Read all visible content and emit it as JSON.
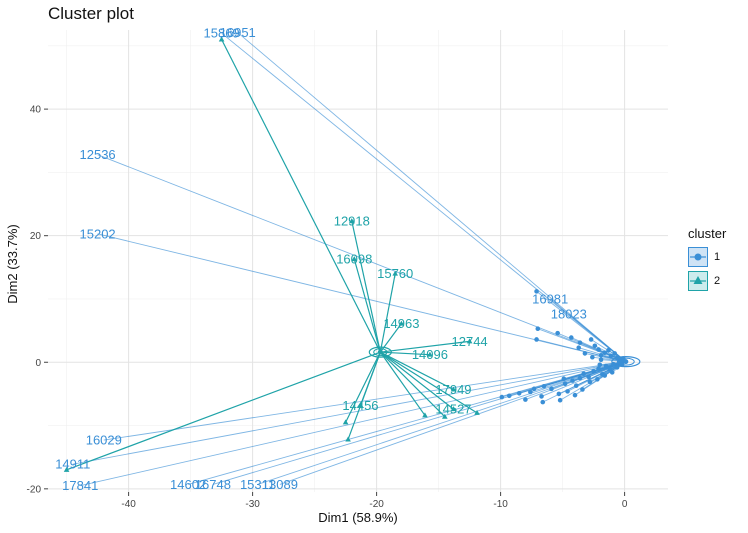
{
  "chart_data": {
    "type": "scatter",
    "title": "Cluster plot",
    "xlabel": "Dim1 (58.9%)",
    "ylabel": "Dim2 (33.7%)",
    "xlim": [
      -46.5,
      3.5
    ],
    "ylim": [
      -20.5,
      52.5
    ],
    "xticks": [
      -40,
      -30,
      -20,
      -10,
      0
    ],
    "yticks": [
      -20,
      0,
      20,
      40
    ],
    "grid": true,
    "legend_title": "cluster",
    "legend_position": "right",
    "colors": {
      "1": "#3a8fd6",
      "2": "#1fa3a8"
    },
    "centroids": {
      "1": {
        "x": 0.1,
        "y": 0.1
      },
      "2": {
        "x": -19.7,
        "y": 1.6
      }
    },
    "series": [
      {
        "name": "1",
        "labeled_points": [
          {
            "label": "15869",
            "x": -32.5,
            "y": 52.0
          },
          {
            "label": "16951",
            "x": -31.2,
            "y": 52.1
          },
          {
            "label": "12536",
            "x": -42.5,
            "y": 32.8
          },
          {
            "label": "15202",
            "x": -42.5,
            "y": 20.3
          },
          {
            "label": "16981",
            "x": -6.0,
            "y": 10.0
          },
          {
            "label": "18023",
            "x": -4.5,
            "y": 7.6
          },
          {
            "label": "16029",
            "x": -42.0,
            "y": -12.3
          },
          {
            "label": "14911",
            "x": -44.5,
            "y": -16.1
          },
          {
            "label": "17841",
            "x": -43.9,
            "y": -19.5
          },
          {
            "label": "14602",
            "x": -35.2,
            "y": -19.3
          },
          {
            "label": "16748",
            "x": -33.2,
            "y": -19.3
          },
          {
            "label": "15311",
            "x": -29.6,
            "y": -19.3
          },
          {
            "label": "13089",
            "x": -27.8,
            "y": -19.3
          }
        ],
        "unlabeled_points": [
          {
            "x": -7.1,
            "y": 11.2
          },
          {
            "x": -7.0,
            "y": 5.3
          },
          {
            "x": -7.1,
            "y": 3.6
          },
          {
            "x": -5.4,
            "y": 4.6
          },
          {
            "x": -4.3,
            "y": 3.9
          },
          {
            "x": -3.6,
            "y": 3.1
          },
          {
            "x": -2.7,
            "y": 3.6
          },
          {
            "x": -2.1,
            "y": 2.0
          },
          {
            "x": -1.6,
            "y": 1.5
          },
          {
            "x": -1.1,
            "y": 1.0
          },
          {
            "x": -0.6,
            "y": 0.7
          },
          {
            "x": -0.3,
            "y": 0.4
          },
          {
            "x": -3.2,
            "y": 1.4
          },
          {
            "x": -2.6,
            "y": 0.8
          },
          {
            "x": -1.9,
            "y": 0.4
          },
          {
            "x": -9.9,
            "y": -5.5
          },
          {
            "x": -9.3,
            "y": -5.3
          },
          {
            "x": -8.5,
            "y": -4.9
          },
          {
            "x": -7.6,
            "y": -4.7
          },
          {
            "x": -8.0,
            "y": -5.9
          },
          {
            "x": -6.7,
            "y": -5.4
          },
          {
            "x": -6.5,
            "y": -3.8
          },
          {
            "x": -5.9,
            "y": -4.2
          },
          {
            "x": -6.6,
            "y": -6.3
          },
          {
            "x": -5.3,
            "y": -5.0
          },
          {
            "x": -4.8,
            "y": -3.4
          },
          {
            "x": -4.6,
            "y": -4.6
          },
          {
            "x": -4.2,
            "y": -2.9
          },
          {
            "x": -3.9,
            "y": -3.7
          },
          {
            "x": -3.6,
            "y": -2.5
          },
          {
            "x": -3.3,
            "y": -1.8
          },
          {
            "x": -2.9,
            "y": -2.3
          },
          {
            "x": -2.5,
            "y": -1.4
          },
          {
            "x": -2.1,
            "y": -1.0
          },
          {
            "x": -1.8,
            "y": -1.9
          },
          {
            "x": -1.5,
            "y": -0.6
          },
          {
            "x": -1.2,
            "y": -1.1
          },
          {
            "x": -0.9,
            "y": -0.3
          },
          {
            "x": -0.6,
            "y": -0.8
          },
          {
            "x": -0.4,
            "y": 0.1
          },
          {
            "x": -0.2,
            "y": -0.4
          },
          {
            "x": -5.2,
            "y": -6.0
          },
          {
            "x": -4.0,
            "y": -5.2
          },
          {
            "x": -3.4,
            "y": -4.3
          },
          {
            "x": -2.8,
            "y": -3.1
          },
          {
            "x": -2.2,
            "y": -2.7
          },
          {
            "x": -1.6,
            "y": -2.1
          },
          {
            "x": -1.0,
            "y": -1.6
          },
          {
            "x": -7.3,
            "y": -4.2
          },
          {
            "x": -3.7,
            "y": 2.3
          },
          {
            "x": -2.4,
            "y": 2.6
          },
          {
            "x": -1.3,
            "y": 1.9
          },
          {
            "x": -0.8,
            "y": 1.4
          },
          {
            "x": -1.9,
            "y": 1.1
          },
          {
            "x": -4.9,
            "y": -2.6
          },
          {
            "x": -2.0,
            "y": -0.4
          },
          {
            "x": -0.1,
            "y": 0.6
          }
        ]
      },
      {
        "name": "2",
        "labeled_points": [
          {
            "label": "12918",
            "x": -22.0,
            "y": 22.3
          },
          {
            "label": "16098",
            "x": -21.8,
            "y": 16.3
          },
          {
            "label": "15760",
            "x": -18.5,
            "y": 14.0
          },
          {
            "label": "14963",
            "x": -18.0,
            "y": 6.1
          },
          {
            "label": "12744",
            "x": -12.5,
            "y": 3.3
          },
          {
            "label": "14096",
            "x": -15.7,
            "y": 1.2
          },
          {
            "label": "17949",
            "x": -13.8,
            "y": -4.3
          },
          {
            "label": "14456",
            "x": -21.3,
            "y": -6.8
          },
          {
            "label": "14527",
            "x": -13.8,
            "y": -7.4
          }
        ],
        "unlabeled_points": [
          {
            "x": -32.5,
            "y": 51.0
          },
          {
            "x": -45.0,
            "y": -17.0
          },
          {
            "x": -22.5,
            "y": -9.5
          },
          {
            "x": -22.3,
            "y": -12.2
          },
          {
            "x": -16.1,
            "y": -8.4
          },
          {
            "x": -14.5,
            "y": -8.6
          },
          {
            "x": -11.9,
            "y": -8.0
          }
        ]
      }
    ]
  }
}
